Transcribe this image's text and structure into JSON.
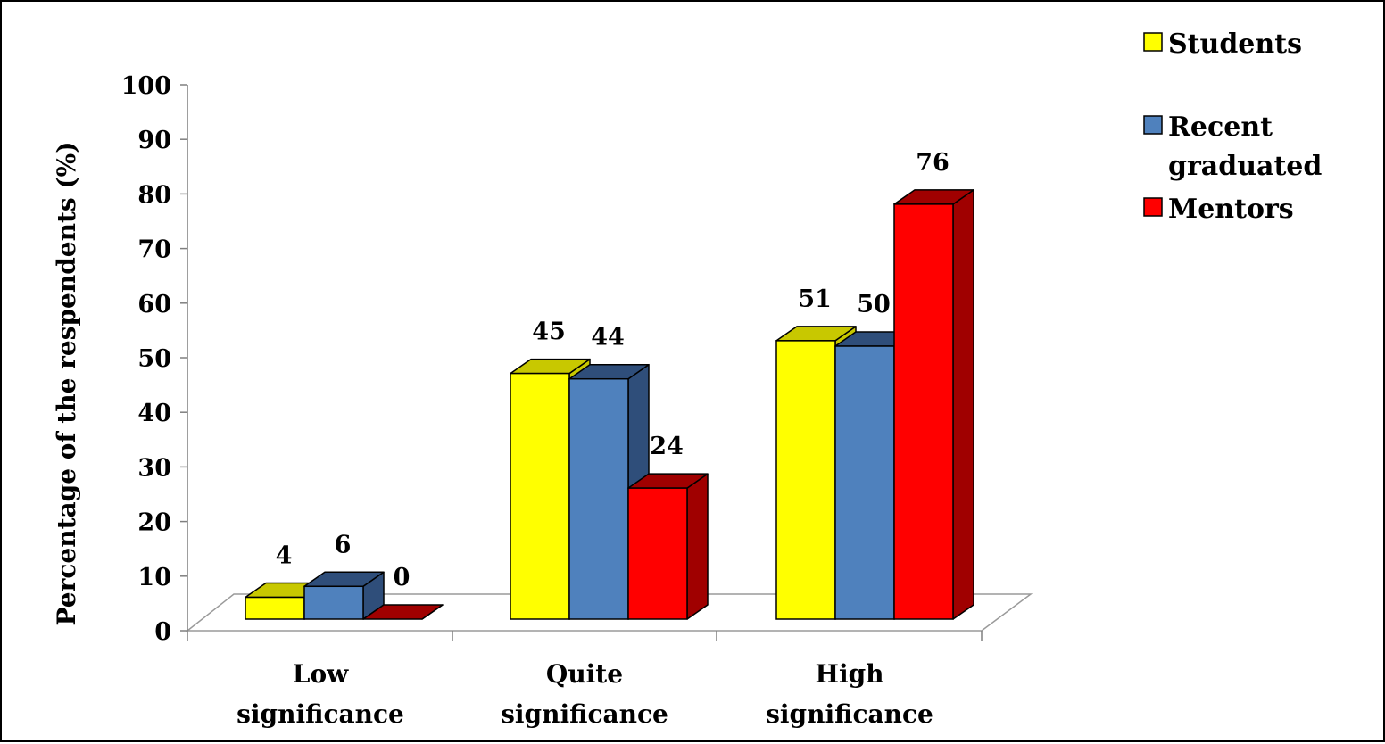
{
  "chart_data": {
    "type": "bar",
    "categories": [
      [
        "Low",
        "significance"
      ],
      [
        "Quite",
        "significance"
      ],
      [
        "High",
        "significance"
      ]
    ],
    "series": [
      {
        "name": "Students",
        "values": [
          4,
          45,
          51
        ],
        "color": "#ffff00",
        "side_color": "#c8c800"
      },
      {
        "name": "Recent graduated",
        "legend_lines": [
          "Recent",
          "graduated"
        ],
        "values": [
          6,
          44,
          50
        ],
        "color": "#4f81bd",
        "side_color": "#2f4e7a"
      },
      {
        "name": "Mentors",
        "values": [
          0,
          24,
          76
        ],
        "color": "#ff0000",
        "side_color": "#a00000"
      }
    ],
    "ylabel": "Percentage of the respendents  (%)",
    "xlabel": "",
    "ylim": [
      0,
      100
    ],
    "yticks": [
      "0",
      "10",
      "20",
      "30",
      "40",
      "50",
      "60",
      "70",
      "80",
      "90",
      "100"
    ],
    "style": "3d-clustered-column",
    "legend": "top-right",
    "grid": false
  }
}
